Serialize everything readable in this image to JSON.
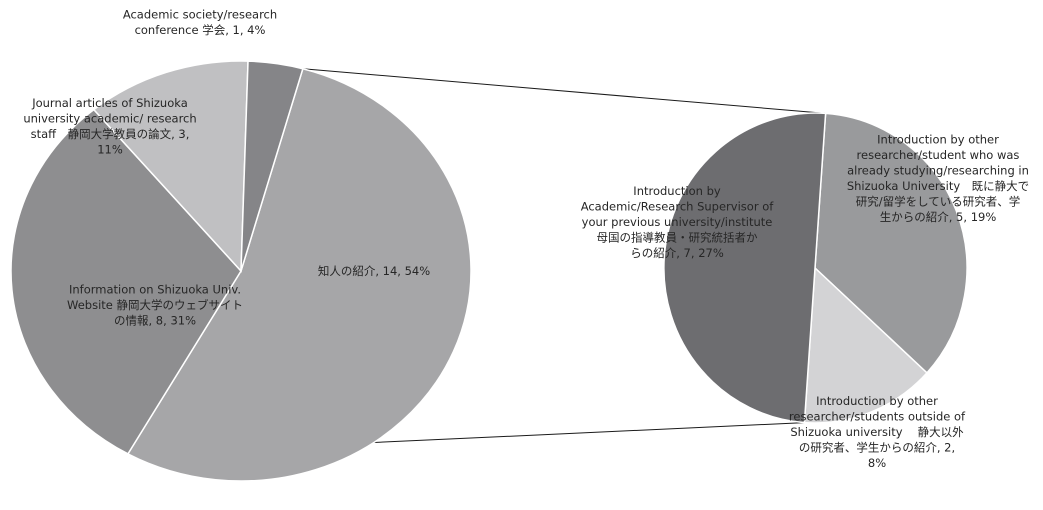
{
  "chart_data": {
    "type": "pie",
    "subtype": "pie-of-pie",
    "primary": {
      "slices": [
        {
          "label_lines": [
            "知人の紹介, 14, 54%"
          ],
          "value": 14,
          "percent": 54,
          "color": "#a6a6a8"
        },
        {
          "label_lines": [
            "Information on Shizuoka Univ.",
            "Website 静岡大学のウェブサイト",
            "の情報, 8, 31%"
          ],
          "value": 8,
          "percent": 31,
          "color": "#8e8e90"
        },
        {
          "label_lines": [
            "Journal articles of Shizuoka",
            "university academic/ research",
            "staff　静岡大学教員の論文, 3,",
            "11%"
          ],
          "value": 3,
          "percent": 11,
          "color": "#c0c0c2"
        },
        {
          "label_lines": [
            "Academic society/research",
            "conference 学会, 1, 4%"
          ],
          "value": 1,
          "percent": 4,
          "color": "#858588"
        }
      ]
    },
    "secondary": {
      "slices": [
        {
          "label_lines": [
            "Introduction by other",
            "researcher/student who was",
            "already studying/researching in",
            "Shizuoka University　既に静大で",
            "研究/留学をしている研究者、学",
            "生からの紹介, 5, 19%"
          ],
          "value": 5,
          "percent": 19,
          "color": "#999a9c"
        },
        {
          "label_lines": [
            "Introduction by other",
            "researcher/students  outside of",
            "Shizuoka university　 静大以外",
            "の研究者、学生からの紹介, 2,",
            "8%"
          ],
          "value": 2,
          "percent": 8,
          "color": "#d3d3d5"
        },
        {
          "label_lines": [
            "Introduction by",
            "Academic/Research Supervisor of",
            "your previous university/institute",
            "母国の指導教員・研究統括者か",
            "らの紹介, 7, 27%"
          ],
          "value": 7,
          "percent": 27,
          "color": "#6d6d70"
        }
      ]
    },
    "legend": "none"
  }
}
